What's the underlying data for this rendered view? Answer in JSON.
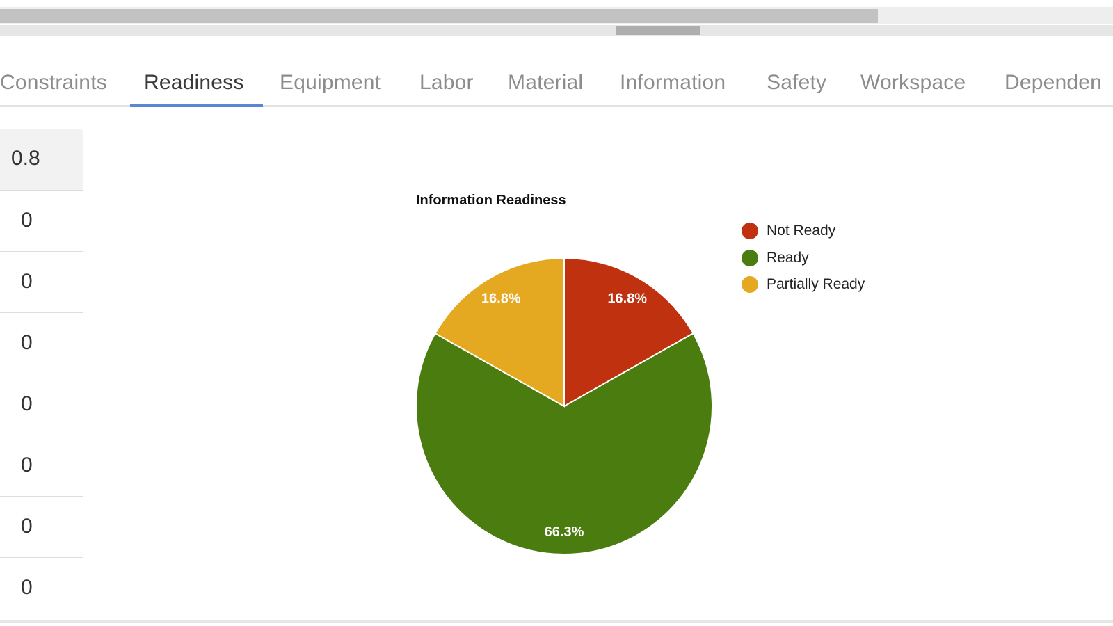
{
  "tabs": [
    {
      "label": "Constraints",
      "active": false
    },
    {
      "label": "Readiness",
      "active": true
    },
    {
      "label": "Equipment",
      "active": false
    },
    {
      "label": "Labor",
      "active": false
    },
    {
      "label": "Material",
      "active": false
    },
    {
      "label": "Information",
      "active": false
    },
    {
      "label": "Safety",
      "active": false
    },
    {
      "label": "Workspace",
      "active": false
    },
    {
      "label": "Dependen",
      "active": false
    }
  ],
  "left_column": {
    "header": "0.8",
    "values": [
      "0",
      "0",
      "0",
      "0",
      "0",
      "0",
      "0"
    ]
  },
  "colors": {
    "tab_active_underline": "#5a86d6",
    "not_ready": "#c0310f",
    "ready": "#4a7c0f",
    "partially_ready": "#e5a821"
  },
  "chart_data": {
    "type": "pie",
    "title": "Information Readiness",
    "legend_position": "right",
    "slices": [
      {
        "label": "Not Ready",
        "value": 16.8,
        "display": "16.8%",
        "color": "#c0310f"
      },
      {
        "label": "Ready",
        "value": 66.3,
        "display": "66.3%",
        "color": "#4a7c0f"
      },
      {
        "label": "Partially Ready",
        "value": 16.8,
        "display": "16.8%",
        "color": "#e5a821"
      }
    ]
  }
}
